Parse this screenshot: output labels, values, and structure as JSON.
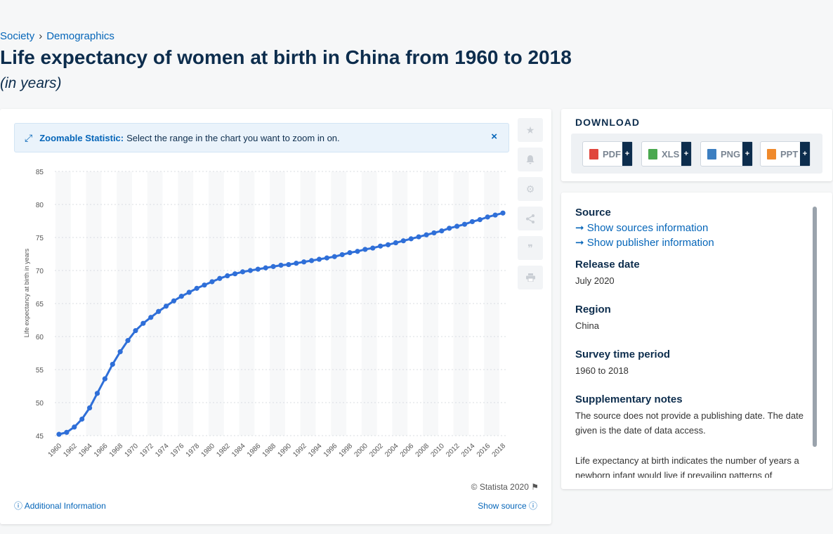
{
  "breadcrumb": {
    "item1": "Society",
    "sep": "›",
    "item2": "Demographics"
  },
  "title": "Life expectancy of women at birth in China from 1960 to 2018",
  "subtitle": "(in years)",
  "zoom": {
    "label": "Zoomable Statistic:",
    "text": "Select the range in the chart you want to zoom in on.",
    "close": "×"
  },
  "footer": {
    "copyright": "© Statista 2020",
    "additional": "Additional Information",
    "show_source": "Show source"
  },
  "icons": [
    "expand-icon",
    "star-icon",
    "bell-icon",
    "gear-icon",
    "share-icon",
    "quote-icon",
    "print-icon",
    "flag-icon",
    "info-icon"
  ],
  "download": {
    "title": "DOWNLOAD",
    "buttons": [
      {
        "label": "PDF",
        "color": "#e0463c"
      },
      {
        "label": "XLS",
        "color": "#4aa84f"
      },
      {
        "label": "PNG",
        "color": "#3d7fc1"
      },
      {
        "label": "PPT",
        "color": "#f08a2c"
      }
    ],
    "plus": "+"
  },
  "info": {
    "source_h": "Source",
    "source_link1": "➞ Show sources information",
    "source_link2": "➞ Show publisher information",
    "release_h": "Release date",
    "release_v": "July 2020",
    "region_h": "Region",
    "region_v": "China",
    "period_h": "Survey time period",
    "period_v": "1960 to 2018",
    "supp_h": "Supplementary notes",
    "supp_v1": "The source does not provide a publishing date. The date given is the date of data access.",
    "supp_v2": "Life expectancy at birth indicates the number of years a newborn infant would live if prevailing patterns of mortality at the time of its birth were to"
  },
  "chart_data": {
    "type": "line",
    "ylabel": "Life expectancy at birth in years",
    "ylim": [
      45,
      85
    ],
    "yticks": [
      45,
      50,
      55,
      60,
      65,
      70,
      75,
      80,
      85
    ],
    "xticks": [
      1960,
      1962,
      1964,
      1966,
      1968,
      1970,
      1972,
      1974,
      1976,
      1978,
      1980,
      1982,
      1984,
      1986,
      1988,
      1990,
      1992,
      1994,
      1996,
      1998,
      2000,
      2002,
      2004,
      2006,
      2008,
      2010,
      2012,
      2014,
      2016,
      2018
    ],
    "series_color": "#2f6fd8",
    "x": [
      1960,
      1961,
      1962,
      1963,
      1964,
      1965,
      1966,
      1967,
      1968,
      1969,
      1970,
      1971,
      1972,
      1973,
      1974,
      1975,
      1976,
      1977,
      1978,
      1979,
      1980,
      1981,
      1982,
      1983,
      1984,
      1985,
      1986,
      1987,
      1988,
      1989,
      1990,
      1991,
      1992,
      1993,
      1994,
      1995,
      1996,
      1997,
      1998,
      1999,
      2000,
      2001,
      2002,
      2003,
      2004,
      2005,
      2006,
      2007,
      2008,
      2009,
      2010,
      2011,
      2012,
      2013,
      2014,
      2015,
      2016,
      2017,
      2018
    ],
    "y": [
      45.2,
      45.5,
      46.3,
      47.5,
      49.2,
      51.4,
      53.6,
      55.8,
      57.7,
      59.4,
      60.9,
      62.0,
      62.9,
      63.8,
      64.6,
      65.4,
      66.1,
      66.7,
      67.3,
      67.8,
      68.3,
      68.8,
      69.2,
      69.5,
      69.8,
      70.0,
      70.2,
      70.4,
      70.6,
      70.8,
      70.9,
      71.1,
      71.3,
      71.5,
      71.7,
      71.9,
      72.1,
      72.4,
      72.7,
      72.9,
      73.2,
      73.4,
      73.7,
      73.9,
      74.2,
      74.5,
      74.8,
      75.1,
      75.4,
      75.7,
      76.0,
      76.4,
      76.7,
      77.0,
      77.4,
      77.7,
      78.1,
      78.4,
      78.7
    ]
  }
}
